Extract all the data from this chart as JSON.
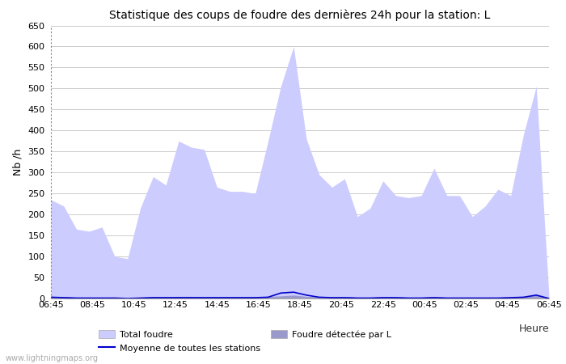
{
  "title": "Statistique des coups de foudre des dernières 24h pour la station: L",
  "ylabel": "Nb /h",
  "ylim": [
    0,
    650
  ],
  "yticks": [
    0,
    50,
    100,
    150,
    200,
    250,
    300,
    350,
    400,
    450,
    500,
    550,
    600,
    650
  ],
  "x_labels": [
    "06:45",
    "08:45",
    "10:45",
    "12:45",
    "14:45",
    "16:45",
    "18:45",
    "20:45",
    "22:45",
    "00:45",
    "02:45",
    "04:45",
    "06:45"
  ],
  "watermark": "www.lightningmaps.org",
  "total_foudre_color": "#ccccff",
  "foudre_detectee_color": "#9999cc",
  "moyenne_color": "#0000cc",
  "background_color": "#ffffff",
  "grid_color": "#cccccc",
  "total_foudre": [
    235,
    220,
    165,
    160,
    170,
    100,
    95,
    215,
    290,
    270,
    375,
    360,
    355,
    265,
    255,
    255,
    250,
    375,
    505,
    600,
    380,
    295,
    265,
    285,
    195,
    215,
    280,
    245,
    240,
    245,
    310,
    245,
    245,
    195,
    220,
    260,
    245,
    390,
    505,
    5
  ],
  "foudre_detectee": [
    5,
    4,
    3,
    3,
    3,
    2,
    1,
    2,
    4,
    4,
    5,
    5,
    4,
    4,
    4,
    4,
    4,
    5,
    6,
    8,
    5,
    4,
    4,
    4,
    3,
    3,
    4,
    3,
    3,
    3,
    4,
    3,
    3,
    3,
    3,
    3,
    3,
    5,
    7,
    1
  ],
  "moyenne": [
    3,
    2,
    1,
    1,
    1,
    1,
    0,
    1,
    2,
    2,
    2,
    2,
    2,
    2,
    2,
    2,
    2,
    3,
    13,
    15,
    8,
    3,
    2,
    2,
    1,
    1,
    2,
    2,
    1,
    1,
    2,
    1,
    1,
    1,
    1,
    1,
    2,
    3,
    8,
    0
  ],
  "n_points": 40,
  "legend_total": "Total foudre",
  "legend_moyenne": "Moyenne de toutes les stations",
  "legend_detectee": "Foudre détectée par L",
  "heure_label": "Heure"
}
